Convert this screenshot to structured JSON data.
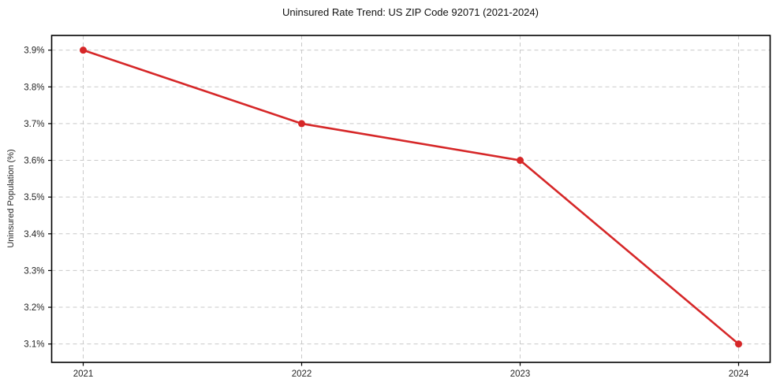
{
  "chart_data": {
    "type": "line",
    "title": "Uninsured Rate Trend: US ZIP Code 92071 (2021-2024)",
    "xlabel": "",
    "ylabel": "Uninsured Population (%)",
    "x": [
      "2021",
      "2022",
      "2023",
      "2024"
    ],
    "values": [
      3.9,
      3.7,
      3.6,
      3.1
    ],
    "unit": "%",
    "ylim": [
      3.05,
      3.94
    ],
    "yticks": [
      {
        "value": 3.9,
        "label": "3.9%"
      },
      {
        "value": 3.8,
        "label": "3.8%"
      },
      {
        "value": 3.7,
        "label": "3.7%"
      },
      {
        "value": 3.6,
        "label": "3.6%"
      },
      {
        "value": 3.5,
        "label": "3.5%"
      },
      {
        "value": 3.4,
        "label": "3.4%"
      },
      {
        "value": 3.3,
        "label": "3.3%"
      },
      {
        "value": 3.2,
        "label": "3.2%"
      },
      {
        "value": 3.1,
        "label": "3.1%"
      }
    ],
    "grid": true,
    "grid_style": "dashed",
    "legend": "none",
    "colors": {
      "line": "#d62728",
      "grid": "#c9c9c9",
      "frame": "#000000",
      "text": "#262626",
      "background": "#ffffff"
    }
  }
}
